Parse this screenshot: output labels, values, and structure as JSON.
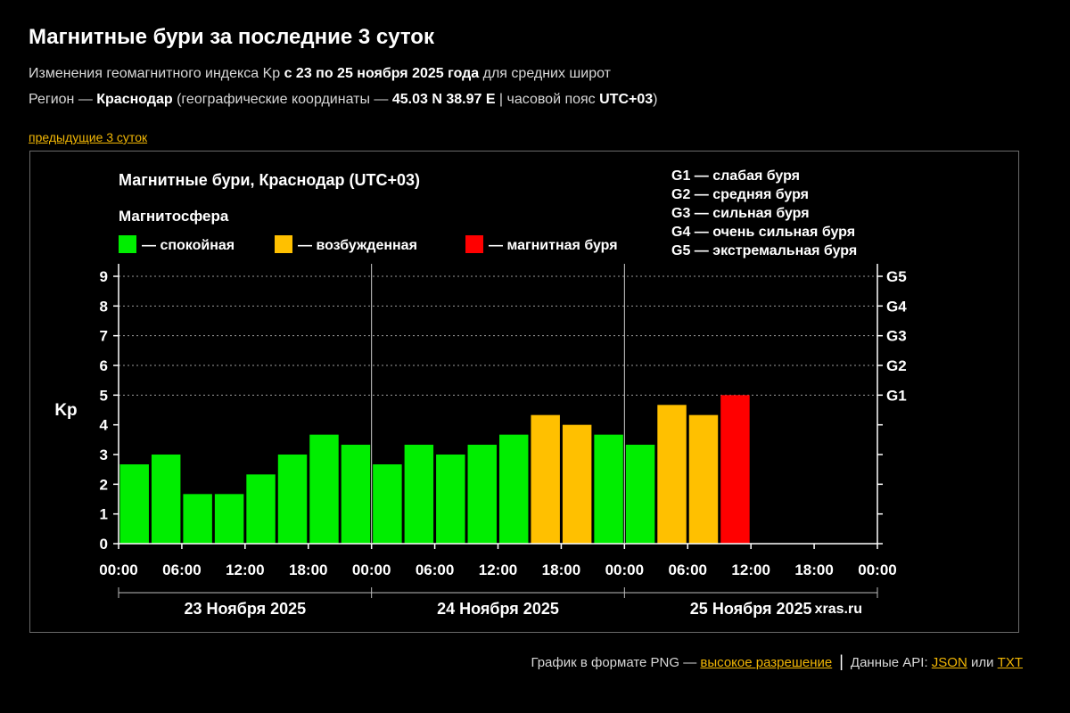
{
  "page": {
    "title": "Магнитные бури за последние 3 суток",
    "subtitle": {
      "prefix": "Изменения геомагнитного индекса Kp ",
      "period": "с 23 по 25 ноября 2025 года",
      "suffix": " для средних широт"
    },
    "region": {
      "prefix": "Регион — ",
      "name": "Краснодар",
      "coords_prefix": " (географические координаты — ",
      "coords": "45.03 N 38.97 E",
      "tz_prefix": " | часовой пояс ",
      "tz": "UTC+03",
      "close": ")"
    },
    "prev_link": "предыдущие 3 суток"
  },
  "footer": {
    "png_text": "График в формате PNG — ",
    "hires_link": "высокое разрешение",
    "separator": "|",
    "api_text": "Данные API: ",
    "json_link": "JSON",
    "or_text": " или ",
    "txt_link": "TXT"
  },
  "colors": {
    "calm": "#00ee00",
    "excited": "#ffc000",
    "storm": "#ff0000",
    "link": "#f2b705"
  },
  "chart_data": {
    "type": "bar",
    "title": "Магнитные бури, Краснодар (UTC+03)",
    "ylabel": "Kp",
    "ylim": [
      0,
      9
    ],
    "yticks": [
      "0",
      "1",
      "2",
      "3",
      "4",
      "5",
      "6",
      "7",
      "8",
      "9"
    ],
    "storm_levels": [
      {
        "label": "G1",
        "kp": 5
      },
      {
        "label": "G2",
        "kp": 6
      },
      {
        "label": "G3",
        "kp": 7
      },
      {
        "label": "G4",
        "kp": 8
      },
      {
        "label": "G5",
        "kp": 9
      }
    ],
    "storm_legend": [
      "G1 — слабая буря",
      "G2 — средняя буря",
      "G3 — сильная буря",
      "G4 — очень сильная буря",
      "G5 — экстремальная буря"
    ],
    "legend_title": "Магнитосфера",
    "legend": [
      {
        "key": "calm",
        "label": "— спокойная"
      },
      {
        "key": "excited",
        "label": "— возбужденная"
      },
      {
        "key": "storm",
        "label": "— магнитная буря"
      }
    ],
    "x_ticks": [
      "00:00",
      "06:00",
      "12:00",
      "18:00",
      "00:00",
      "06:00",
      "12:00",
      "18:00",
      "00:00",
      "06:00",
      "12:00",
      "18:00",
      "00:00"
    ],
    "days": [
      "23 Ноября 2025",
      "24 Ноября 2025",
      "25 Ноября 2025"
    ],
    "bars_per_day": 8,
    "total_slots": 24,
    "values": [
      2.67,
      3.0,
      1.67,
      1.67,
      2.33,
      3.0,
      3.67,
      3.33,
      2.67,
      3.33,
      3.0,
      3.33,
      3.67,
      4.33,
      4.0,
      3.67,
      3.33,
      4.67,
      4.33,
      5.0
    ],
    "levels": [
      "calm",
      "calm",
      "calm",
      "calm",
      "calm",
      "calm",
      "calm",
      "calm",
      "calm",
      "calm",
      "calm",
      "calm",
      "calm",
      "excited",
      "excited",
      "calm",
      "calm",
      "excited",
      "excited",
      "storm"
    ],
    "grid": true,
    "watermark": "xras.ru"
  }
}
